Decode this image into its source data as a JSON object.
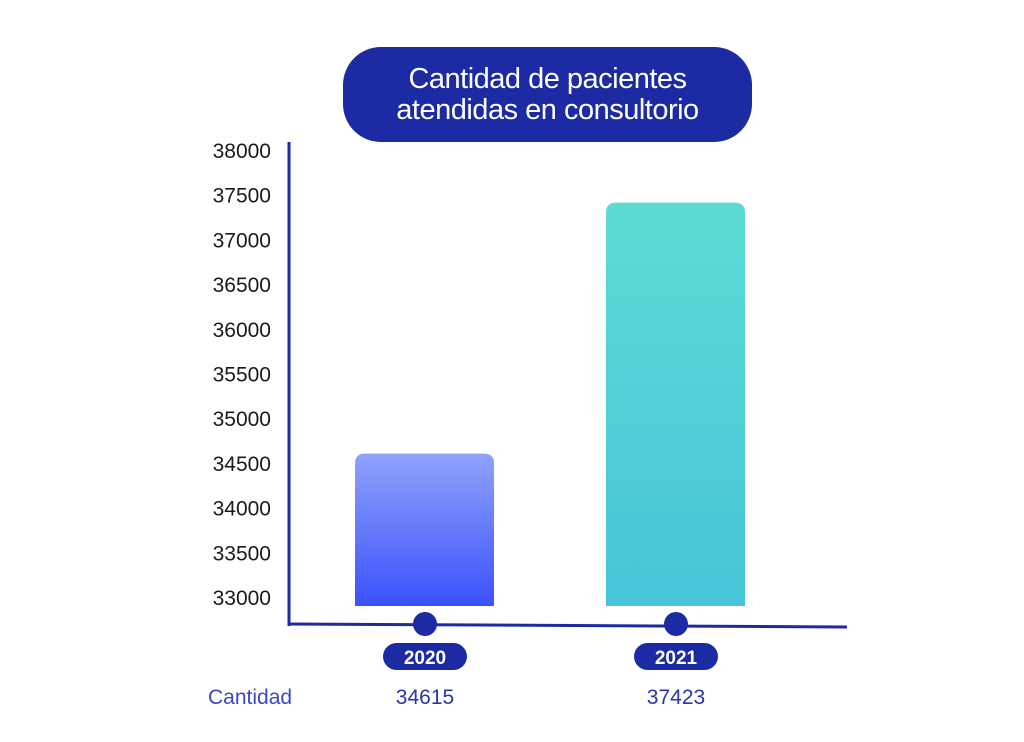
{
  "title": "Cantidad de pacientes\natendidas en consultorio",
  "colors": {
    "title_bg": "#1c2aa3",
    "axis": "#1c2aa3",
    "bar_2020_top": "#8ea3fb",
    "bar_2020_bottom": "#3b51fb",
    "bar_2021_top": "#5cdbd5",
    "bar_2021_bottom": "#47c4d8"
  },
  "chart_data": {
    "type": "bar",
    "title": "Cantidad de pacientes\natendidas en consultorio",
    "categories": [
      "2020",
      "2021"
    ],
    "series": [
      {
        "name": "Cantidad",
        "values": [
          34615,
          37423
        ]
      }
    ],
    "ylim": [
      33000,
      38000
    ],
    "yticks": [
      "33000",
      "33500",
      "34000",
      "34500",
      "35000",
      "35500",
      "36000",
      "36500",
      "37000",
      "37500",
      "38000"
    ],
    "xlabel": "",
    "ylabel": "",
    "grid": false
  },
  "table": {
    "row_label": "Cantidad",
    "values": [
      "34615",
      "37423"
    ]
  }
}
